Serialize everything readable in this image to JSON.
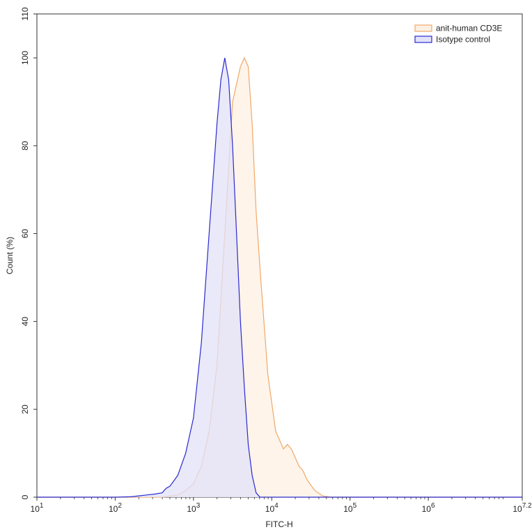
{
  "chart_data": {
    "type": "area",
    "xlabel": "FITC-H",
    "ylabel": "Count (%)",
    "x_scale": "log10",
    "xlim": [
      10,
      15848932
    ],
    "ylim": [
      0,
      110
    ],
    "x_ticks": [
      {
        "base": "10",
        "exp": "1"
      },
      {
        "base": "10",
        "exp": "2"
      },
      {
        "base": "10",
        "exp": "3"
      },
      {
        "base": "10",
        "exp": "4"
      },
      {
        "base": "10",
        "exp": "5"
      },
      {
        "base": "10",
        "exp": "6"
      },
      {
        "base": "10",
        "exp": "7.2"
      }
    ],
    "y_ticks": [
      "0",
      "20",
      "40",
      "60",
      "80",
      "100",
      "110"
    ],
    "legend_position": "top-right",
    "series": [
      {
        "name": "anit-human CD3E",
        "line_color": "#f0a868",
        "fill_color": "#fdf0e3",
        "x": [
          10,
          100,
          398,
          631,
          794,
          1000,
          1259,
          1585,
          1995,
          2512,
          3162,
          3981,
          4467,
          5012,
          5623,
          6310,
          7079,
          8913,
          11220,
          14125,
          15849,
          17783,
          19953,
          22387,
          25119,
          28184,
          35481,
          44668,
          56234,
          100000,
          15848932
        ],
        "y": [
          0,
          0,
          0,
          0.5,
          1.5,
          3,
          7,
          15,
          30,
          60,
          90,
          98,
          100,
          98,
          85,
          65,
          52,
          28,
          15,
          11,
          12,
          11,
          9,
          7,
          6,
          4,
          1.5,
          0.3,
          0,
          0,
          0
        ]
      },
      {
        "name": "Isotype control",
        "line_color": "#2a2ad0",
        "fill_color": "#e2e2f8",
        "x": [
          10,
          100,
          158,
          200,
          251,
          316,
          398,
          447,
          501,
          631,
          794,
          1000,
          1259,
          1585,
          1995,
          2239,
          2512,
          2818,
          3162,
          3548,
          3981,
          4467,
          5012,
          5623,
          6310,
          7079,
          10000,
          15848932
        ],
        "y": [
          0,
          0,
          0.1,
          0.3,
          0.5,
          0.7,
          1,
          2,
          2.5,
          5,
          10,
          18,
          35,
          60,
          85,
          95,
          100,
          95,
          80,
          60,
          40,
          25,
          12,
          5,
          1,
          0,
          0,
          0
        ]
      }
    ]
  }
}
